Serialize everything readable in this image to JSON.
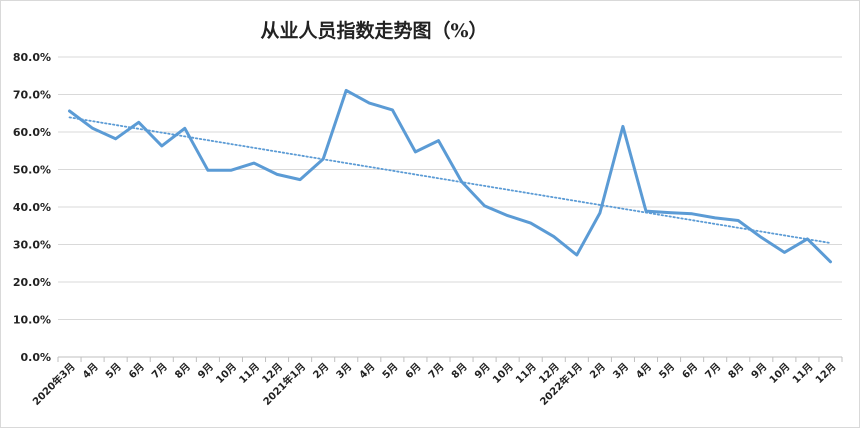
{
  "chart_data": {
    "type": "line",
    "title": "从业人员指数走势图（%）",
    "xlabel": "",
    "ylabel": "",
    "ylim": [
      0,
      80
    ],
    "yticks": [
      "0.0%",
      "10.0%",
      "20.0%",
      "30.0%",
      "40.0%",
      "50.0%",
      "60.0%",
      "70.0%",
      "80.0%"
    ],
    "grid": true,
    "legend": "none",
    "categories": [
      "2020年3月",
      "4月",
      "5月",
      "6月",
      "7月",
      "8月",
      "9月",
      "10月",
      "11月",
      "12月",
      "2021年1月",
      "2月",
      "3月",
      "4月",
      "5月",
      "6月",
      "7月",
      "8月",
      "9月",
      "10月",
      "11月",
      "12月",
      "2022年1月",
      "2月",
      "3月",
      "4月",
      "5月",
      "6月",
      "7月",
      "8月",
      "9月",
      "10月",
      "11月",
      "12月"
    ],
    "series": [
      {
        "values": [
          65.6,
          61.0,
          58.2,
          62.6,
          56.3,
          61.0,
          49.8,
          49.8,
          51.7,
          48.7,
          47.3,
          52.8,
          71.1,
          67.7,
          65.9,
          54.7,
          57.7,
          46.8,
          40.3,
          37.7,
          35.7,
          32.1,
          27.2,
          38.4,
          61.5,
          38.9,
          38.5,
          38.2,
          37.1,
          36.4,
          31.9,
          27.9,
          31.5,
          25.4
        ],
        "color": "#5b9bd5"
      }
    ],
    "trendline": {
      "from": 63.9,
      "to": 30.4,
      "color": "#5b9bd5",
      "style": "dotted"
    }
  }
}
